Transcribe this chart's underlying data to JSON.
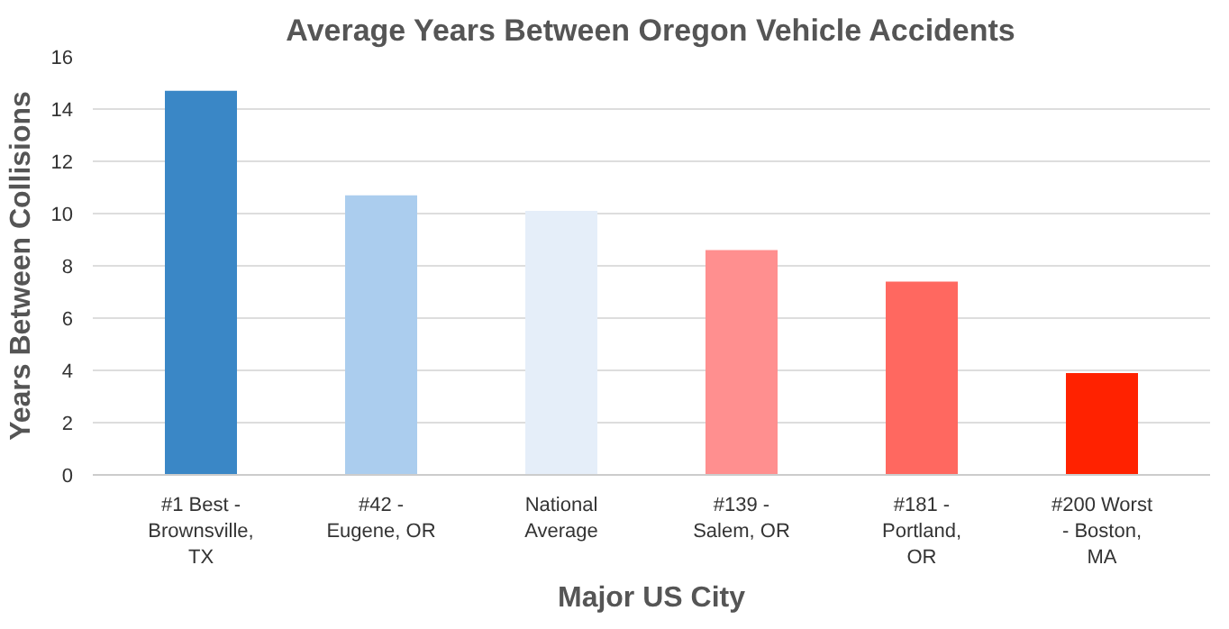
{
  "chart_data": {
    "type": "bar",
    "title": "Average Years Between Oregon Vehicle Accidents",
    "xlabel": "Major US City",
    "ylabel": "Years Between Collisions",
    "categories": [
      "#1 Best - Brownsville, TX",
      "#42 - Eugene, OR",
      "National Average",
      "#139 - Salem, OR",
      "#181 - Portland, OR",
      "#200 Worst - Boston, MA"
    ],
    "values": [
      14.7,
      10.7,
      10.1,
      8.6,
      7.4,
      3.9
    ],
    "colors": [
      "#3a87c6",
      "#abcdee",
      "#e5eef9",
      "#ff8f8f",
      "#ff6860",
      "#ff2200"
    ],
    "ylim": [
      0,
      16
    ],
    "yticks": [
      0,
      2,
      4,
      6,
      8,
      10,
      12,
      14,
      16
    ],
    "grid": "y"
  }
}
